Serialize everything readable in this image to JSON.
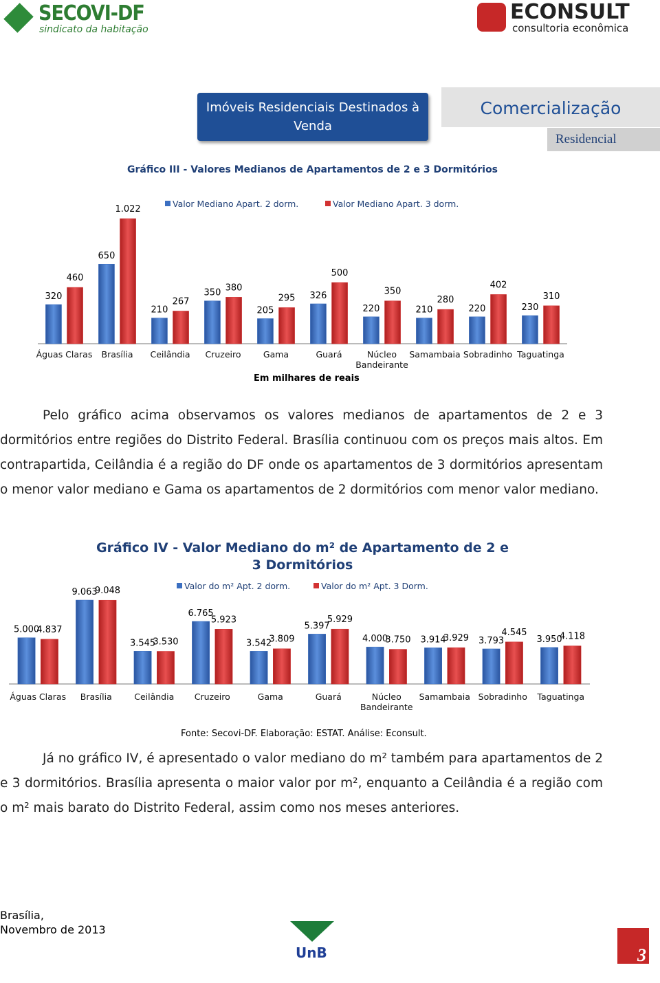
{
  "header": {
    "left_logo": "SECOVI-DF",
    "left_logo_sub": "sindicato da habitação",
    "right_logo": "ECONSULT",
    "right_logo_sub": "consultoria econômica",
    "box": "Imóveis Residenciais Destinados à Venda",
    "section": "Comercialização",
    "subsection": "Residencial"
  },
  "chart_data": [
    {
      "type": "bar",
      "title": "Gráfico III - Valores Medianos de Apartamentos de 2 e 3 Dormitórios",
      "x_label": "Em milhares de reais",
      "categories": [
        "Águas Claras",
        "Brasília",
        "Ceilândia",
        "Cruzeiro",
        "Gama",
        "Guará",
        "Núcleo Bandeirante",
        "Samambaia",
        "Sobradinho",
        "Taguatinga"
      ],
      "series": [
        {
          "name": "Valor Mediano Apart. 2 dorm.",
          "color": "#3b6fc1",
          "values": [
            320,
            650,
            210,
            350,
            205,
            326,
            220,
            210,
            220,
            230
          ],
          "value_labels": [
            "320",
            "650",
            "210",
            "350",
            "205",
            "326",
            "220",
            "210",
            "220",
            "230"
          ]
        },
        {
          "name": "Valor Mediano Apart. 3 dorm.",
          "color": "#d23232",
          "values": [
            460,
            1022,
            267,
            380,
            295,
            500,
            350,
            280,
            402,
            310
          ],
          "value_labels": [
            "460",
            "1.022",
            "267",
            "380",
            "295",
            "500",
            "350",
            "280",
            "402",
            "310"
          ]
        }
      ]
    },
    {
      "type": "bar",
      "title": "Gráfico IV - Valor Mediano do m² de Apartamento de 2 e 3 Dormitórios",
      "categories": [
        "Águas Claras",
        "Brasília",
        "Ceilândia",
        "Cruzeiro",
        "Gama",
        "Guará",
        "Núcleo Bandeirante",
        "Samambaia",
        "Sobradinho",
        "Taguatinga"
      ],
      "series": [
        {
          "name": "Valor do m² Apt. 2 dorm.",
          "color": "#3b6fc1",
          "values": [
            5000,
            9063,
            3545,
            6765,
            3542,
            5397,
            4000,
            3914,
            3793,
            3950
          ],
          "value_labels": [
            "5.000",
            "9.063",
            "3.545",
            "6.765",
            "3.542",
            "5.397",
            "4.000",
            "3.914",
            "3.793",
            "3.950"
          ]
        },
        {
          "name": "Valor do m² Apt. 3 Dorm.",
          "color": "#d23232",
          "values": [
            4837,
            9048,
            3530,
            5923,
            3809,
            5929,
            3750,
            3929,
            4545,
            4118
          ],
          "value_labels": [
            "4.837",
            "9.048",
            "3.530",
            "5.923",
            "3.809",
            "5.929",
            "3.750",
            "3.929",
            "4.545",
            "4.118"
          ]
        }
      ],
      "source": "Fonte: Secovi-DF. Elaboração: ESTAT. Análise: Econsult."
    }
  ],
  "paragraphs": [
    "Pelo gráfico acima observamos os valores medianos de apartamentos de 2 e 3 dormitórios entre regiões do Distrito Federal. Brasília continuou com os preços mais altos. Em contrapartida, Ceilândia é a região do DF onde os apartamentos de 3 dormitórios apresentam o menor valor mediano e Gama os apartamentos de 2 dormitórios com menor valor mediano.",
    "Já no gráfico IV, é apresentado o valor mediano do m² também para apartamentos de 2 e 3 dormitórios. Brasília apresenta o maior valor por m², enquanto a Ceilândia é a região com o m² mais barato do Distrito Federal, assim como nos meses anteriores."
  ],
  "footer": {
    "city": "Brasília,",
    "date": "Novembro de 2013",
    "logo": "UnB",
    "page": "3"
  }
}
